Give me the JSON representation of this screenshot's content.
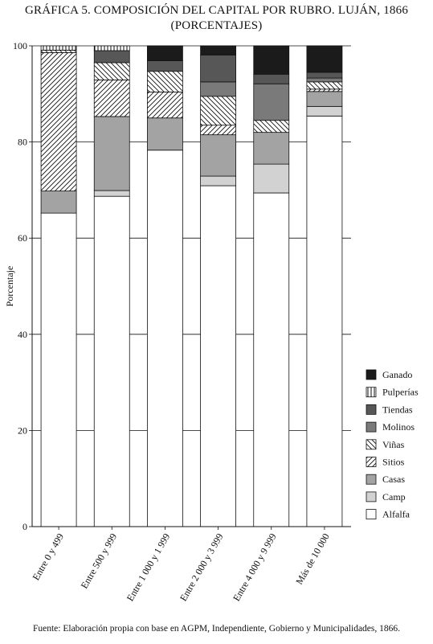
{
  "title": {
    "line1": "GRÁFICA 5. COMPOSICIÓN DEL CAPITAL POR RUBRO. LUJÁN, 1866",
    "line2": "(PORCENTAJES)"
  },
  "source": "Fuente: Elaboración propia con base en AGPM, Independiente, Gobierno y Municipalidades, 1866.",
  "chart_data": {
    "type": "bar",
    "stacked": true,
    "title": "GRÁFICA 5. COMPOSICIÓN DEL CAPITAL POR RUBRO. LUJÁN, 1866 (PORCENTAJES)",
    "xlabel": "",
    "ylabel": "Porcentaje",
    "ylim": [
      0,
      100
    ],
    "yticks": [
      0,
      20,
      40,
      60,
      80,
      100
    ],
    "grid": "horizontal",
    "legend_position": "right",
    "categories": [
      "Entre 0 y 499",
      "Entre 500 y 999",
      "Entre 1 000 y 1 999",
      "Entre 2 000 y 3 999",
      "Entre 4 000 y 9 999",
      "Más de 10 000"
    ],
    "series": [
      {
        "name": "Alfalfa",
        "pattern": "white",
        "values": [
          65.2,
          68.7,
          78.3,
          70.9,
          69.4,
          85.4
        ]
      },
      {
        "name": "Camp",
        "pattern": "lightgray",
        "values": [
          0.0,
          1.2,
          0.0,
          2.0,
          6.0,
          2.0
        ]
      },
      {
        "name": "Casas",
        "pattern": "midgray",
        "values": [
          4.6,
          15.4,
          6.7,
          8.6,
          6.6,
          3.1
        ]
      },
      {
        "name": "Sitios",
        "pattern": "hatch-up",
        "values": [
          28.8,
          7.6,
          5.4,
          2.0,
          0.0,
          0.5
        ]
      },
      {
        "name": "Viñas",
        "pattern": "hatch-down",
        "values": [
          0.5,
          3.6,
          4.3,
          6.0,
          2.5,
          1.5
        ]
      },
      {
        "name": "Molinos",
        "pattern": "darkgray",
        "values": [
          0.0,
          0.0,
          0.0,
          3.0,
          7.6,
          0.8
        ]
      },
      {
        "name": "Tiendas",
        "pattern": "darker",
        "values": [
          0.0,
          2.5,
          2.2,
          5.6,
          2.0,
          1.2
        ]
      },
      {
        "name": "Pulperías",
        "pattern": "vlines",
        "values": [
          0.9,
          1.0,
          0.0,
          0.0,
          0.0,
          0.0
        ]
      },
      {
        "name": "Ganado",
        "pattern": "black",
        "values": [
          0.0,
          0.0,
          3.1,
          1.9,
          5.9,
          5.5
        ]
      }
    ],
    "legend_order": [
      "Ganado",
      "Pulperías",
      "Tiendas",
      "Molinos",
      "Viñas",
      "Sitios",
      "Casas",
      "Camp",
      "Alfalfa"
    ]
  }
}
